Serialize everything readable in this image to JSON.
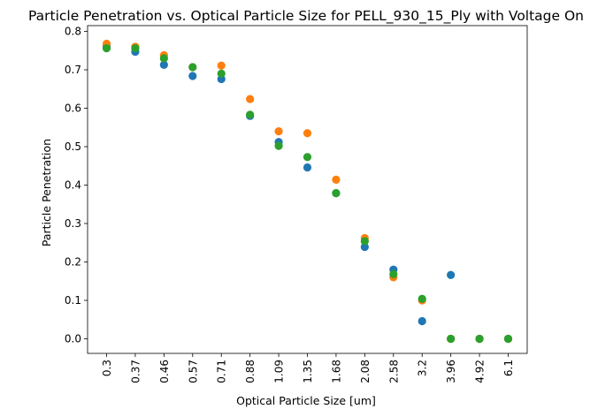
{
  "chart_data": {
    "type": "scatter",
    "title": "Particle Penetration vs. Optical Particle Size for PELL_930_15_Ply with Voltage On",
    "xlabel": "Optical Particle Size [um]",
    "ylabel": "Particle Penetration",
    "categories": [
      "0.3",
      "0.37",
      "0.46",
      "0.57",
      "0.71",
      "0.88",
      "1.09",
      "1.35",
      "1.68",
      "2.08",
      "2.58",
      "3.2",
      "3.96",
      "4.92",
      "6.1"
    ],
    "ylim": [
      -0.038,
      0.815
    ],
    "yticks": [
      "0.0",
      "0.1",
      "0.2",
      "0.3",
      "0.4",
      "0.5",
      "0.6",
      "0.7",
      "0.8"
    ],
    "grid": false,
    "legend": "none",
    "series": [
      {
        "color": "#1f77b4",
        "values": [
          0.762,
          0.747,
          0.713,
          0.684,
          0.676,
          0.58,
          0.512,
          0.446,
          0.379,
          0.239,
          0.18,
          0.046,
          0.166,
          0.0,
          0.0
        ]
      },
      {
        "color": "#ff7f0e",
        "values": [
          0.768,
          0.76,
          0.738,
          0.707,
          0.711,
          0.624,
          0.54,
          0.535,
          0.414,
          0.262,
          0.16,
          0.1,
          0.0,
          0.0,
          0.0
        ]
      },
      {
        "color": "#2ca02c",
        "values": [
          0.756,
          0.756,
          0.73,
          0.707,
          0.69,
          0.583,
          0.502,
          0.473,
          0.379,
          0.254,
          0.168,
          0.104,
          0.0,
          0.0,
          0.0
        ]
      }
    ]
  }
}
